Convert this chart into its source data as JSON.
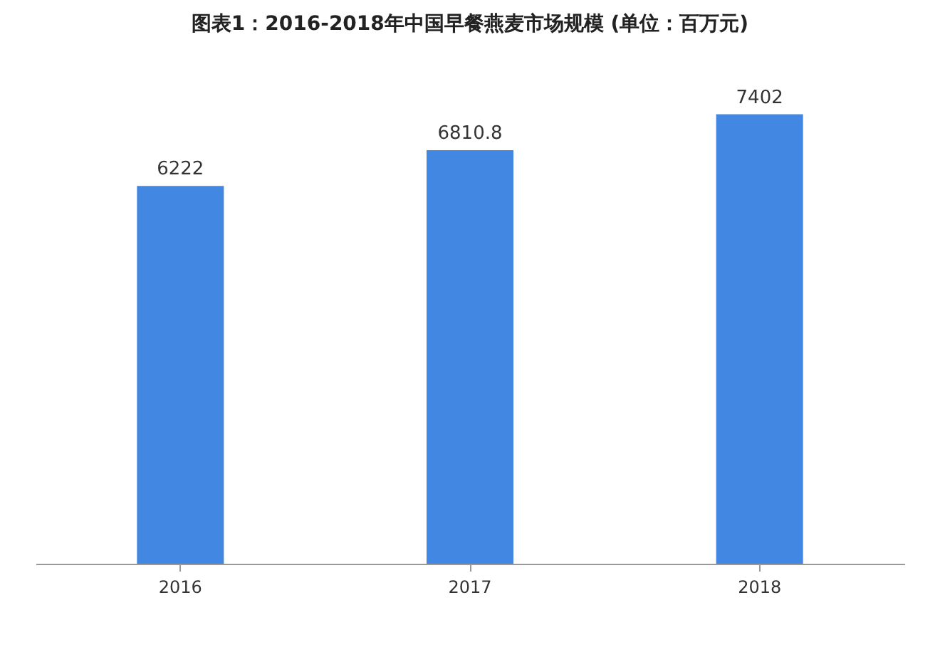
{
  "chart_data": {
    "type": "bar",
    "title": "图表1：2016-2018年中国早餐燕麦市场规模 (单位：百万元)",
    "categories": [
      "2016",
      "2017",
      "2018"
    ],
    "values": [
      6222,
      6810.8,
      7402
    ],
    "color": "#4287e2",
    "data_labels": true
  }
}
